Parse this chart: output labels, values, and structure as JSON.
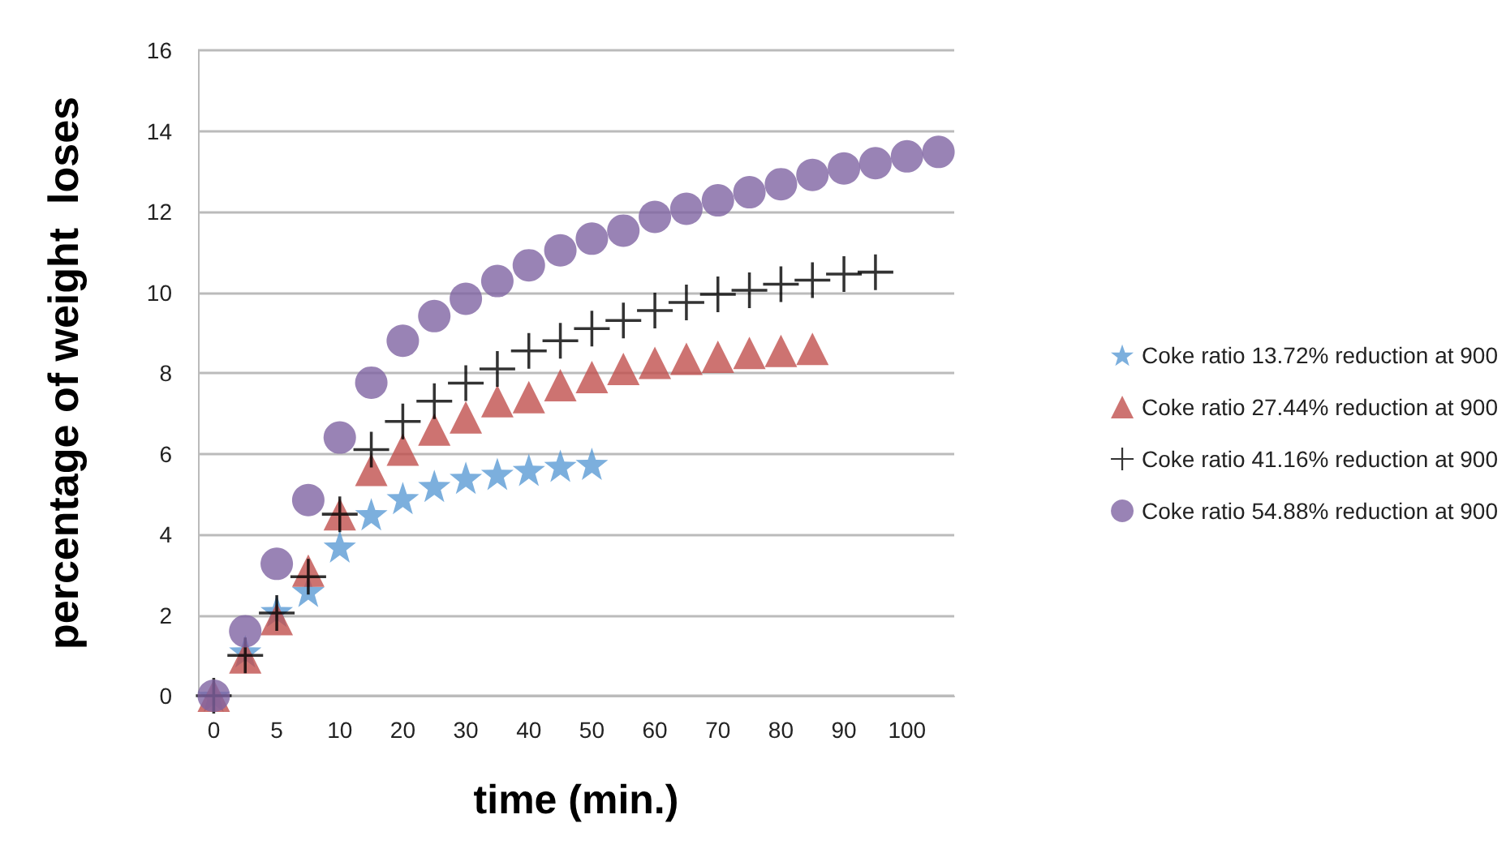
{
  "chart_data": {
    "type": "scatter",
    "xlabel": "time (min.)",
    "ylabel": "percentage of weight  loses",
    "categories": [
      "0",
      null,
      "5",
      null,
      "10",
      null,
      "20",
      null,
      "30",
      null,
      "40",
      null,
      "50",
      null,
      "60",
      null,
      "70",
      null,
      "80",
      null,
      "90",
      null,
      "100",
      null
    ],
    "ylim": [
      0,
      16
    ],
    "yticks": [
      0,
      2,
      4,
      6,
      8,
      10,
      12,
      14,
      16
    ],
    "grid": "y",
    "legend": "right",
    "series": [
      {
        "name": "Coke ratio 13.72% reduction at 900",
        "color": "#5b9bd5",
        "marker": "star",
        "values": [
          0,
          1.1,
          2.1,
          2.6,
          3.7,
          4.5,
          4.9,
          5.2,
          5.4,
          5.5,
          5.6,
          5.7,
          5.75,
          null,
          null,
          null,
          null,
          null,
          null,
          null,
          null,
          null,
          null,
          null
        ]
      },
      {
        "name": "Coke ratio 27.44% reduction at 900",
        "color": "#c0504d",
        "marker": "triangle",
        "values": [
          0,
          0.95,
          1.9,
          3.1,
          4.5,
          5.6,
          6.1,
          6.6,
          6.9,
          7.3,
          7.4,
          7.7,
          7.9,
          8.1,
          8.25,
          8.35,
          8.4,
          8.5,
          8.55,
          8.6,
          null,
          null,
          null,
          null
        ]
      },
      {
        "name": "Coke ratio 41.16% reduction at 900",
        "color": "#000000",
        "marker": "cross",
        "values": [
          0,
          1.0,
          2.05,
          2.95,
          4.5,
          6.1,
          6.8,
          7.3,
          7.75,
          8.1,
          8.55,
          8.8,
          9.1,
          9.3,
          9.55,
          9.75,
          9.95,
          10.05,
          10.2,
          10.3,
          10.45,
          10.5,
          null,
          null
        ]
      },
      {
        "name": "Coke ratio 54.88% reduction at 900",
        "color": "#8064a2",
        "marker": "circle",
        "values": [
          0,
          1.6,
          3.27,
          4.85,
          6.4,
          7.76,
          8.8,
          9.41,
          9.84,
          10.28,
          10.67,
          11.04,
          11.33,
          11.53,
          11.87,
          12.07,
          12.28,
          12.48,
          12.68,
          12.91,
          13.07,
          13.2,
          13.37,
          13.48
        ]
      }
    ]
  }
}
